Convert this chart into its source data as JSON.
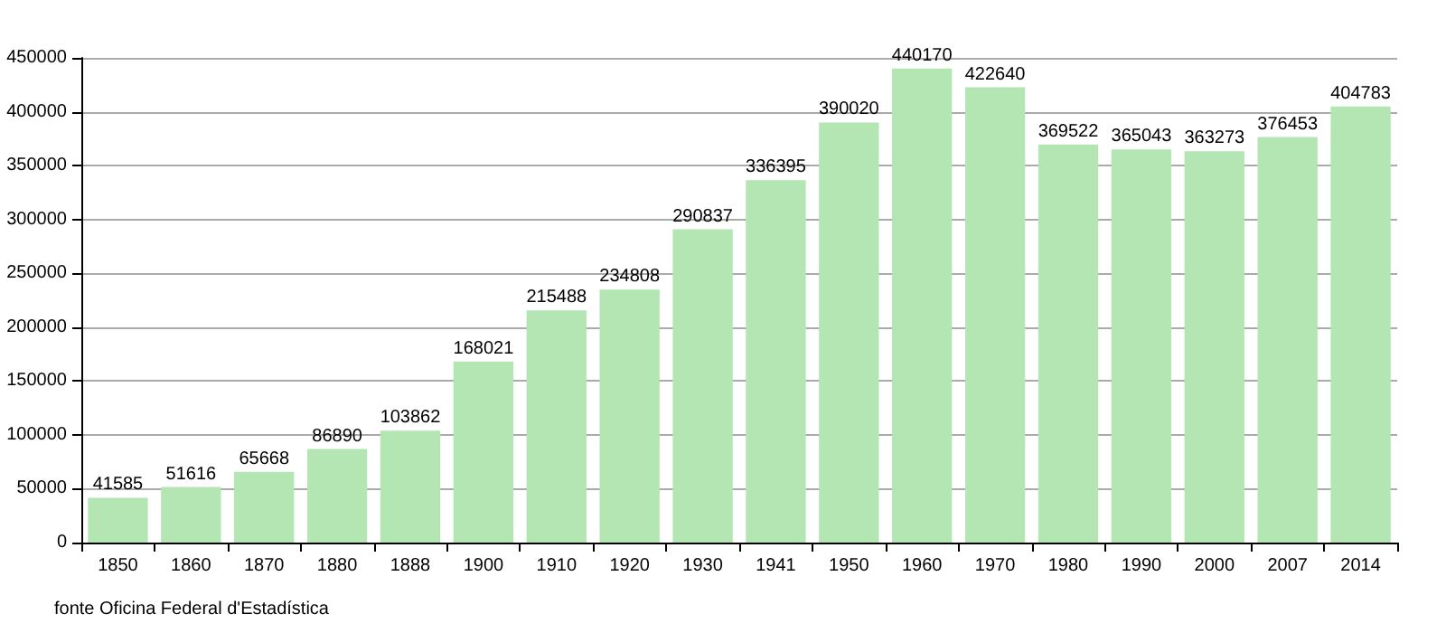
{
  "chart_data": {
    "type": "bar",
    "categories": [
      "1850",
      "1860",
      "1870",
      "1880",
      "1888",
      "1900",
      "1910",
      "1920",
      "1930",
      "1941",
      "1950",
      "1960",
      "1970",
      "1980",
      "1990",
      "2000",
      "2007",
      "2014"
    ],
    "values": [
      41585,
      51616,
      65668,
      86890,
      103862,
      168021,
      215488,
      234808,
      290837,
      336395,
      390020,
      440170,
      422640,
      369522,
      365043,
      363273,
      376453,
      404783
    ],
    "color": "#b3e6b3",
    "ylim": [
      0,
      450000
    ],
    "yticks": [
      0,
      50000,
      100000,
      150000,
      200000,
      250000,
      300000,
      350000,
      400000,
      450000
    ],
    "grid": "y",
    "data_labels": true,
    "annotations": [
      "fonte Oficina Federal d'Estadística"
    ]
  }
}
